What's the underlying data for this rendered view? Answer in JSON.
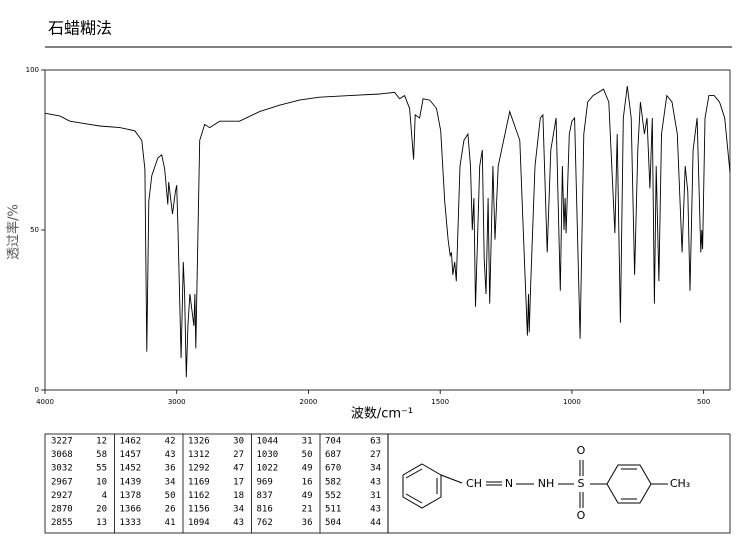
{
  "header": {
    "title": "石蜡糊法"
  },
  "chart_data": {
    "type": "line",
    "ylabel": "透过率/%",
    "xlabel": "波数/cm⁻¹",
    "color": "#000000",
    "xlim": [
      4000,
      400
    ],
    "ylim": [
      0,
      100
    ],
    "xticks": [
      4000,
      3000,
      2000,
      1500,
      1000,
      500
    ],
    "yticks": [
      0,
      50,
      100
    ],
    "x": [
      4000,
      3886,
      3811,
      3659,
      3583,
      3432,
      3318,
      3265,
      3242,
      3227,
      3212,
      3189,
      3144,
      3114,
      3091,
      3068,
      3061,
      3032,
      3010,
      3000,
      2990,
      2967,
      2950,
      2940,
      2927,
      2915,
      2900,
      2870,
      2862,
      2855,
      2826,
      2788,
      2750,
      2674,
      2523,
      2371,
      2220,
      2068,
      1958,
      1844,
      1730,
      1673,
      1654,
      1635,
      1616,
      1601,
      1595,
      1578,
      1565,
      1540,
      1514,
      1498,
      1483,
      1470,
      1462,
      1457,
      1452,
      1445,
      1439,
      1425,
      1410,
      1395,
      1385,
      1378,
      1372,
      1366,
      1350,
      1340,
      1333,
      1326,
      1318,
      1312,
      1300,
      1292,
      1280,
      1236,
      1198,
      1180,
      1169,
      1165,
      1162,
      1156,
      1140,
      1120,
      1110,
      1094,
      1080,
      1060,
      1044,
      1036,
      1030,
      1026,
      1022,
      1010,
      1000,
      990,
      969,
      955,
      940,
      920,
      900,
      880,
      860,
      837,
      828,
      816,
      805,
      790,
      775,
      762,
      750,
      740,
      725,
      715,
      704,
      695,
      687,
      680,
      670,
      660,
      640,
      620,
      600,
      582,
      570,
      560,
      552,
      540,
      525,
      511,
      507,
      504,
      495,
      480,
      460,
      440,
      420,
      400
    ],
    "values": [
      86.5,
      85.6,
      84,
      83,
      82.5,
      82,
      81,
      78,
      69,
      12,
      59,
      67,
      72.5,
      73.5,
      69,
      58,
      65,
      55,
      62,
      64,
      50,
      10,
      40,
      30,
      4,
      20,
      30,
      20,
      30,
      13,
      78,
      83,
      82,
      84,
      84,
      87,
      89,
      90.6,
      91.5,
      92,
      92.5,
      93,
      91,
      92,
      88,
      72,
      86,
      85,
      91,
      90.6,
      88,
      81,
      59,
      47,
      42,
      43,
      36,
      40,
      34,
      70,
      78,
      80,
      70,
      50,
      60,
      26,
      70,
      75,
      41,
      30,
      60,
      27,
      70,
      47,
      70,
      87,
      78,
      40,
      17,
      30,
      18,
      34,
      70,
      85,
      86,
      43,
      75,
      85,
      31,
      70,
      50,
      60,
      49,
      80,
      84,
      85,
      16,
      80,
      90,
      92,
      93,
      94,
      90,
      49,
      80,
      21,
      85,
      95,
      85,
      36,
      75,
      90,
      80,
      85,
      63,
      85,
      27,
      70,
      34,
      80,
      92,
      90,
      80,
      43,
      70,
      62,
      31,
      75,
      85,
      43,
      50,
      44,
      85,
      92,
      92,
      90,
      85,
      68
    ]
  },
  "peak_table": {
    "rows": [
      [
        [
          "3227",
          "12"
        ],
        [
          "1462",
          "42"
        ],
        [
          "1326",
          "30"
        ],
        [
          "1044",
          "31"
        ],
        [
          "704",
          "63"
        ]
      ],
      [
        [
          "3068",
          "58"
        ],
        [
          "1457",
          "43"
        ],
        [
          "1312",
          "27"
        ],
        [
          "1030",
          "50"
        ],
        [
          "687",
          "27"
        ]
      ],
      [
        [
          "3032",
          "55"
        ],
        [
          "1452",
          "36"
        ],
        [
          "1292",
          "47"
        ],
        [
          "1022",
          "49"
        ],
        [
          "670",
          "34"
        ]
      ],
      [
        [
          "2967",
          "10"
        ],
        [
          "1439",
          "34"
        ],
        [
          "1169",
          "17"
        ],
        [
          "969",
          "16"
        ],
        [
          "582",
          "43"
        ]
      ],
      [
        [
          "2927",
          "4"
        ],
        [
          "1378",
          "50"
        ],
        [
          "1162",
          "18"
        ],
        [
          "837",
          "49"
        ],
        [
          "552",
          "31"
        ]
      ],
      [
        [
          "2870",
          "20"
        ],
        [
          "1366",
          "26"
        ],
        [
          "1156",
          "34"
        ],
        [
          "816",
          "21"
        ],
        [
          "511",
          "43"
        ]
      ],
      [
        [
          "2855",
          "13"
        ],
        [
          "1333",
          "41"
        ],
        [
          "1094",
          "43"
        ],
        [
          "762",
          "36"
        ],
        [
          "504",
          "44"
        ]
      ]
    ]
  },
  "structure": {
    "labels": [
      "CH",
      "N",
      "NH",
      "S",
      "O",
      "O",
      "CH₃"
    ]
  }
}
